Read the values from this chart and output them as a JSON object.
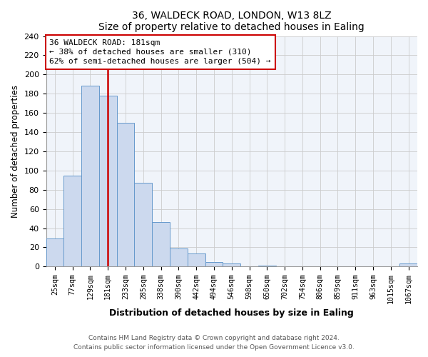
{
  "title": "36, WALDECK ROAD, LONDON, W13 8LZ",
  "subtitle": "Size of property relative to detached houses in Ealing",
  "xlabel": "Distribution of detached houses by size in Ealing",
  "ylabel": "Number of detached properties",
  "bar_labels": [
    "25sqm",
    "77sqm",
    "129sqm",
    "181sqm",
    "233sqm",
    "285sqm",
    "338sqm",
    "390sqm",
    "442sqm",
    "494sqm",
    "546sqm",
    "598sqm",
    "650sqm",
    "702sqm",
    "754sqm",
    "806sqm",
    "859sqm",
    "911sqm",
    "963sqm",
    "1015sqm",
    "1067sqm"
  ],
  "bar_heights": [
    29,
    95,
    188,
    178,
    150,
    87,
    46,
    19,
    14,
    5,
    3,
    0,
    1,
    0,
    0,
    0,
    0,
    0,
    0,
    0,
    3
  ],
  "bar_color": "#ccd9ee",
  "bar_edge_color": "#6699cc",
  "vline_x": 3,
  "vline_color": "#cc0000",
  "annotation_title": "36 WALDECK ROAD: 181sqm",
  "annotation_line1": "← 38% of detached houses are smaller (310)",
  "annotation_line2": "62% of semi-detached houses are larger (504) →",
  "annotation_box_edge": "#cc0000",
  "ylim": [
    0,
    240
  ],
  "yticks": [
    0,
    20,
    40,
    60,
    80,
    100,
    120,
    140,
    160,
    180,
    200,
    220,
    240
  ],
  "footer1": "Contains HM Land Registry data © Crown copyright and database right 2024.",
  "footer2": "Contains public sector information licensed under the Open Government Licence v3.0.",
  "bg_color": "#f0f4fa"
}
